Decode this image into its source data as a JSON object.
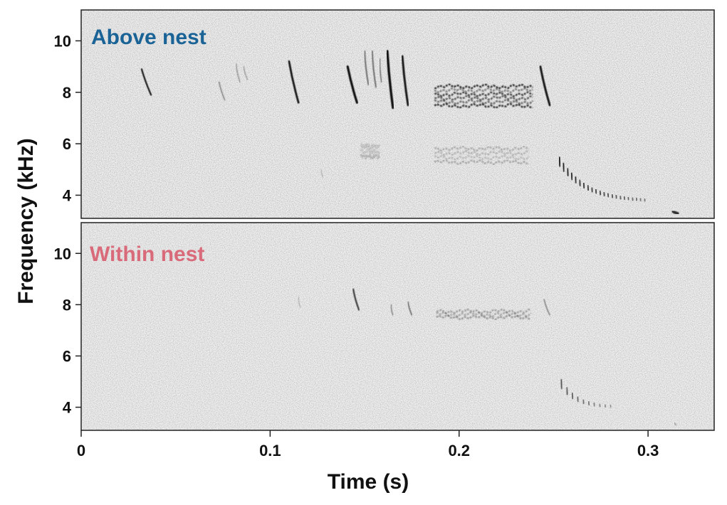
{
  "colors": {
    "above_label": "#1a6396",
    "within_label": "#d96a7a",
    "ink": "#111111",
    "panel_bg": "#efefef"
  },
  "chart_data": {
    "type": "heatmap",
    "xlabel": "Time (s)",
    "ylabel": "Frequency (kHz)",
    "xlim": [
      0,
      0.335
    ],
    "x_ticks": [
      0,
      0.1,
      0.2,
      0.3
    ],
    "x_tick_labels": [
      "0",
      "0.1",
      "0.2",
      "0.3"
    ],
    "ylim": [
      3.1,
      11.2
    ],
    "y_ticks": [
      4,
      6,
      8,
      10
    ],
    "y_tick_labels": [
      "4",
      "6",
      "8",
      "10"
    ],
    "grid": false,
    "panels": [
      {
        "label": "Above nest",
        "label_color": "#1a6396",
        "sweeps": [
          {
            "t0": 0.032,
            "f0": 8.9,
            "t1": 0.037,
            "f1": 7.9,
            "w": 2.2,
            "op": 0.95
          },
          {
            "t0": 0.073,
            "f0": 8.4,
            "t1": 0.076,
            "f1": 7.7,
            "w": 1.6,
            "op": 0.45
          },
          {
            "t0": 0.082,
            "f0": 9.1,
            "t1": 0.084,
            "f1": 8.4,
            "w": 1.6,
            "op": 0.35
          },
          {
            "t0": 0.086,
            "f0": 9.0,
            "t1": 0.088,
            "f1": 8.5,
            "w": 1.5,
            "op": 0.3
          },
          {
            "t0": 0.11,
            "f0": 9.2,
            "t1": 0.115,
            "f1": 7.6,
            "w": 2.8,
            "op": 0.95
          },
          {
            "t0": 0.141,
            "f0": 9.0,
            "t1": 0.146,
            "f1": 7.6,
            "w": 3.2,
            "op": 0.98
          },
          {
            "t0": 0.15,
            "f0": 9.6,
            "t1": 0.152,
            "f1": 8.3,
            "w": 2.0,
            "op": 0.55
          },
          {
            "t0": 0.154,
            "f0": 9.6,
            "t1": 0.156,
            "f1": 8.2,
            "w": 2.0,
            "op": 0.55
          },
          {
            "t0": 0.158,
            "f0": 9.3,
            "t1": 0.159,
            "f1": 8.4,
            "w": 1.8,
            "op": 0.5
          },
          {
            "t0": 0.162,
            "f0": 9.6,
            "t1": 0.165,
            "f1": 7.4,
            "w": 3.4,
            "op": 0.98
          },
          {
            "t0": 0.17,
            "f0": 9.4,
            "t1": 0.173,
            "f1": 7.5,
            "w": 3.0,
            "op": 0.95
          },
          {
            "t0": 0.243,
            "f0": 9.0,
            "t1": 0.248,
            "f1": 7.5,
            "w": 3.0,
            "op": 0.95
          },
          {
            "t0": 0.178,
            "f0": 6.38,
            "t1": 0.185,
            "f1": 6.38,
            "w": 6.0,
            "op": 1.0
          },
          {
            "t0": 0.313,
            "f0": 3.38,
            "t1": 0.316,
            "f1": 3.28,
            "w": 4.0,
            "op": 0.85
          },
          {
            "t0": 0.127,
            "f0": 5.0,
            "t1": 0.128,
            "f1": 4.7,
            "w": 1.2,
            "op": 0.25
          }
        ],
        "bands": [
          {
            "t0": 0.187,
            "t1": 0.239,
            "f0": 7.4,
            "f1": 8.3,
            "op": 0.8,
            "n_strands": 6
          },
          {
            "t0": 0.187,
            "t1": 0.237,
            "f0": 5.2,
            "f1": 5.9,
            "op": 0.25,
            "n_strands": 4
          },
          {
            "t0": 0.148,
            "t1": 0.158,
            "f0": 5.4,
            "f1": 6.0,
            "op": 0.2,
            "n_strands": 3
          }
        ],
        "trill": {
          "t0": 0.253,
          "f0": 5.3,
          "t1": 0.298,
          "f1": 3.75,
          "n": 22,
          "op": 0.95
        }
      },
      {
        "label": "Within nest",
        "label_color": "#d96a7a",
        "sweeps": [
          {
            "t0": 0.115,
            "f0": 8.3,
            "t1": 0.116,
            "f1": 7.9,
            "w": 1.2,
            "op": 0.25
          },
          {
            "t0": 0.144,
            "f0": 8.6,
            "t1": 0.147,
            "f1": 7.8,
            "w": 2.2,
            "op": 0.8
          },
          {
            "t0": 0.164,
            "f0": 8.0,
            "t1": 0.165,
            "f1": 7.6,
            "w": 1.6,
            "op": 0.45
          },
          {
            "t0": 0.173,
            "f0": 8.1,
            "t1": 0.175,
            "f1": 7.6,
            "w": 1.8,
            "op": 0.55
          },
          {
            "t0": 0.245,
            "f0": 8.2,
            "t1": 0.248,
            "f1": 7.6,
            "w": 1.6,
            "op": 0.45
          },
          {
            "t0": 0.178,
            "f0": 6.43,
            "t1": 0.185,
            "f1": 6.43,
            "w": 6.0,
            "op": 1.0
          },
          {
            "t0": 0.314,
            "f0": 3.4,
            "t1": 0.315,
            "f1": 3.3,
            "w": 1.5,
            "op": 0.3
          }
        ],
        "bands": [
          {
            "t0": 0.188,
            "t1": 0.238,
            "f0": 7.45,
            "f1": 7.8,
            "op": 0.35,
            "n_strands": 3
          }
        ],
        "trill": {
          "t0": 0.254,
          "f0": 4.9,
          "t1": 0.28,
          "f1": 4.0,
          "n": 10,
          "op": 0.7
        }
      }
    ]
  }
}
